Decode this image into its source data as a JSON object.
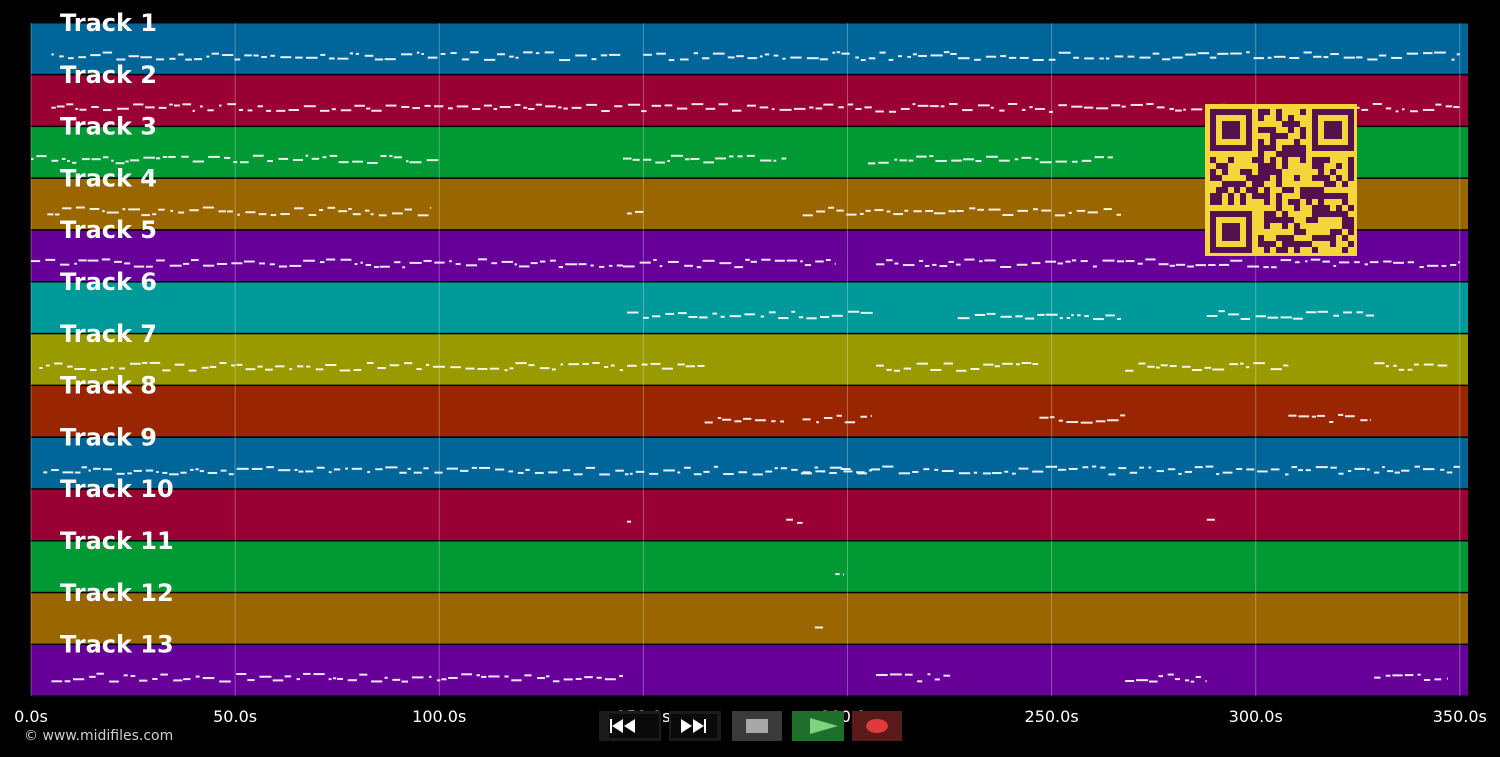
{
  "app": {
    "copyright": "© www.midifiles.com"
  },
  "timeline": {
    "ticks": [
      "0.0s",
      "50.0s",
      "100.0s",
      "150.0s",
      "200.0s",
      "250.0s",
      "300.0s",
      "350.0s"
    ],
    "tick_seconds": [
      0,
      50,
      100,
      150,
      200,
      250,
      300,
      350
    ],
    "max_seconds": 352
  },
  "tracks": [
    {
      "name": "Track 1",
      "color": "#006699"
    },
    {
      "name": "Track 2",
      "color": "#990033"
    },
    {
      "name": "Track 3",
      "color": "#009933"
    },
    {
      "name": "Track 4",
      "color": "#996600"
    },
    {
      "name": "Track 5",
      "color": "#660099"
    },
    {
      "name": "Track 6",
      "color": "#009999"
    },
    {
      "name": "Track 7",
      "color": "#999900"
    },
    {
      "name": "Track 8",
      "color": "#992600"
    },
    {
      "name": "Track 9",
      "color": "#006699"
    },
    {
      "name": "Track 10",
      "color": "#990033"
    },
    {
      "name": "Track 11",
      "color": "#009933"
    },
    {
      "name": "Track 12",
      "color": "#996600"
    },
    {
      "name": "Track 13",
      "color": "#660099"
    }
  ],
  "note_activity": [
    [
      [
        5,
        145
      ],
      [
        150,
        350
      ]
    ],
    [
      [
        5,
        350
      ]
    ],
    [
      [
        0,
        100
      ],
      [
        145,
        185
      ],
      [
        205,
        265
      ]
    ],
    [
      [
        4,
        98
      ],
      [
        146,
        150
      ],
      [
        189,
        267
      ]
    ],
    [
      [
        0,
        145
      ],
      [
        145,
        197
      ],
      [
        207,
        350
      ]
    ],
    [
      [
        146,
        207
      ],
      [
        227,
        267
      ],
      [
        288,
        329
      ]
    ],
    [
      [
        2,
        145
      ],
      [
        146,
        165
      ],
      [
        207,
        247
      ],
      [
        268,
        308
      ],
      [
        329,
        347
      ]
    ],
    [
      [
        165,
        185
      ],
      [
        189,
        206
      ],
      [
        247,
        268
      ],
      [
        308,
        328
      ]
    ],
    [
      [
        3,
        350
      ],
      [
        189,
        207
      ]
    ],
    [
      [
        146,
        147
      ],
      [
        185,
        189
      ],
      [
        288,
        290
      ]
    ],
    [
      [
        197,
        199
      ]
    ],
    [
      [
        192,
        194
      ]
    ],
    [
      [
        5,
        145
      ],
      [
        207,
        226
      ],
      [
        268,
        288
      ],
      [
        329,
        347
      ]
    ]
  ],
  "transport": {
    "buttons": [
      {
        "name": "rewind-button",
        "icon": "rewind-icon"
      },
      {
        "name": "fast-forward-button",
        "icon": "fast-forward-icon"
      },
      {
        "name": "stop-button",
        "icon": "stop-icon"
      },
      {
        "name": "play-button",
        "icon": "play-icon"
      },
      {
        "name": "record-button",
        "icon": "record-icon"
      }
    ]
  },
  "overlay": {
    "qr_color": "#f5d63a",
    "qr_dark": "#55114d"
  }
}
